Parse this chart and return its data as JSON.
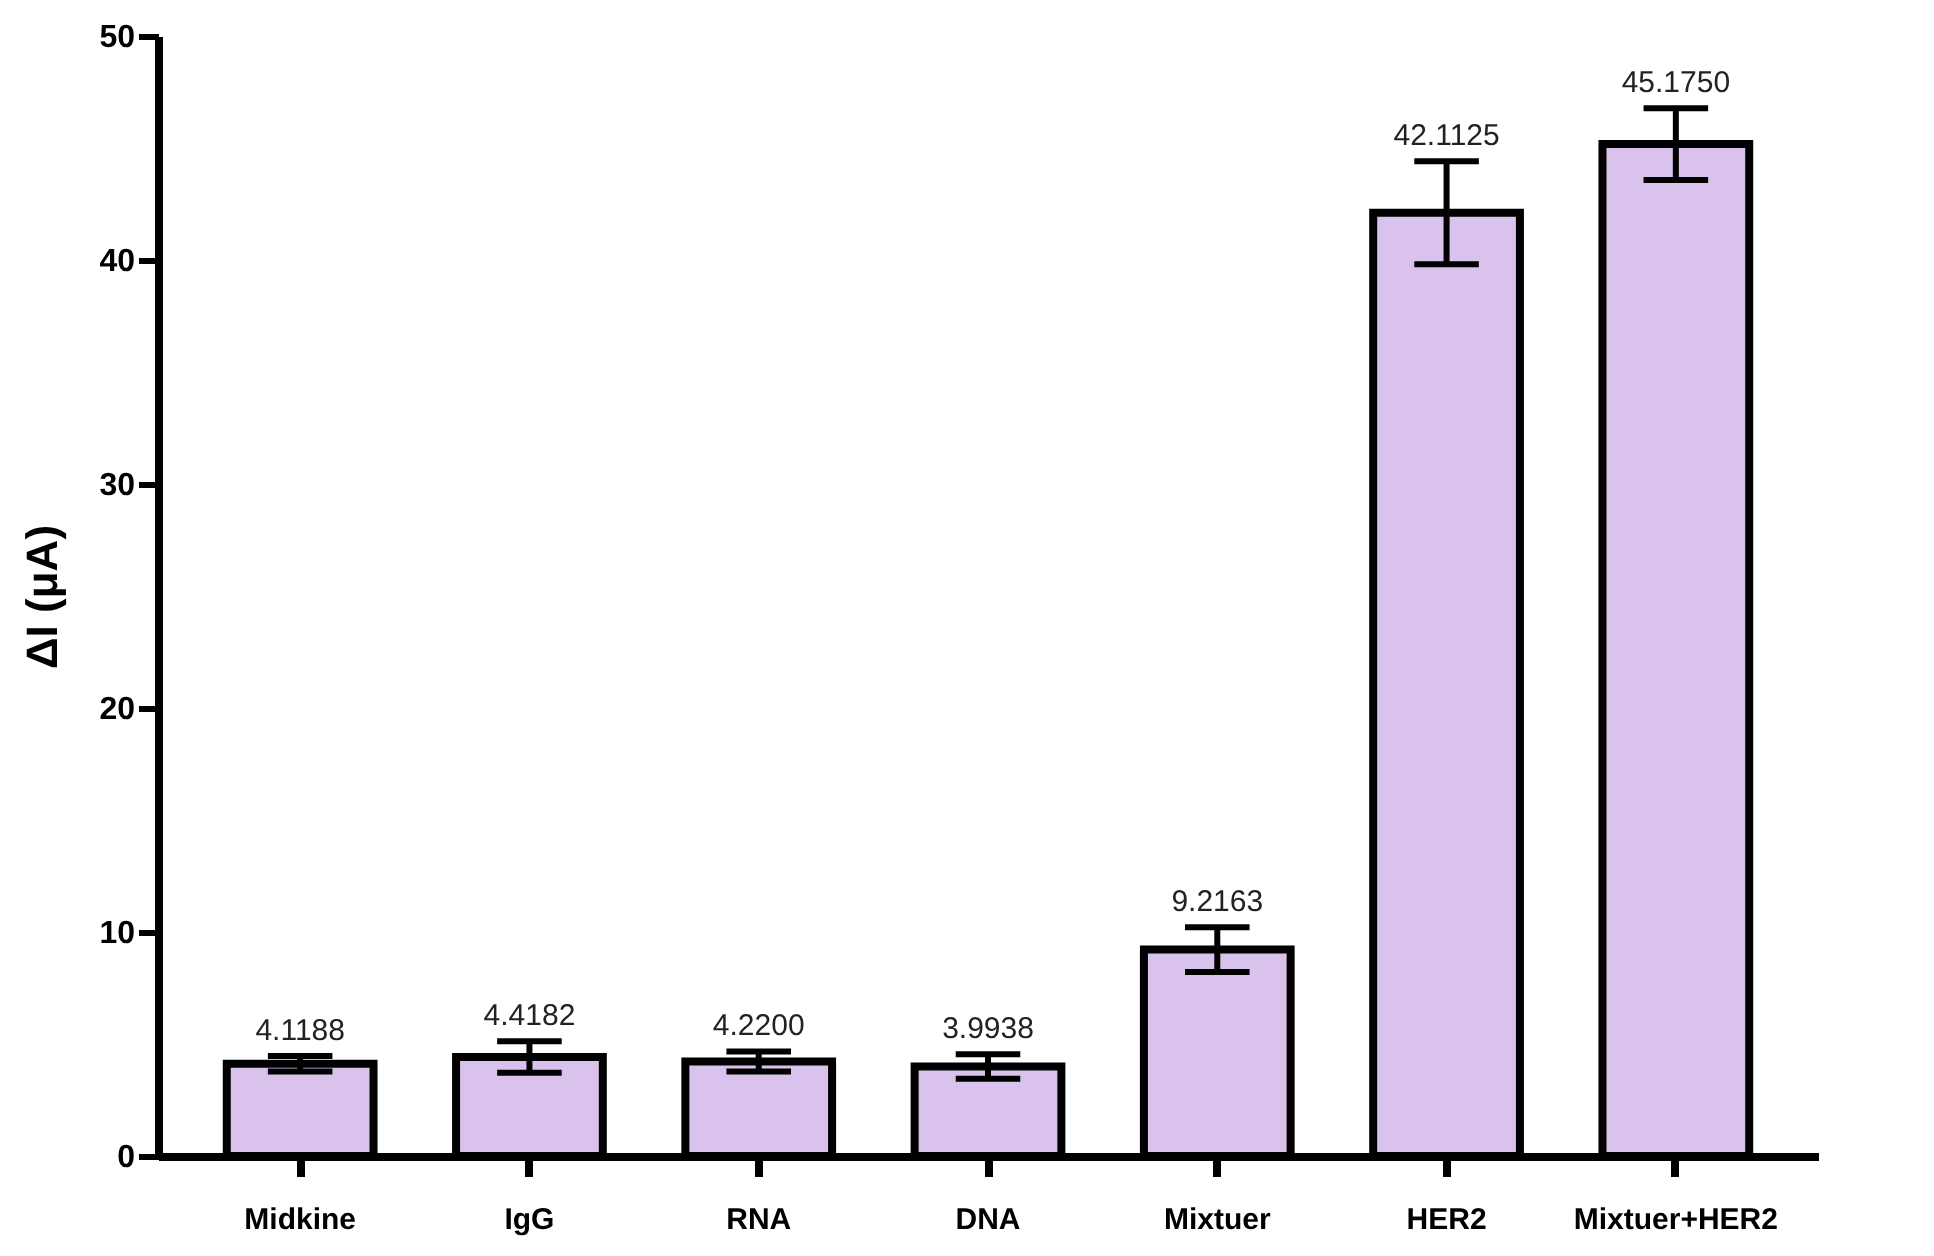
{
  "chart_data": {
    "type": "bar",
    "ylabel": "ΔI (μA)",
    "categories": [
      "Midkine",
      "IgG",
      "RNA",
      "DNA",
      "Mixtuer",
      "HER2",
      "Mixtuer+HER2"
    ],
    "values": [
      4.1188,
      4.4182,
      4.22,
      3.9938,
      9.2163,
      42.1125,
      45.175
    ],
    "errors": [
      0.35,
      0.7,
      0.45,
      0.55,
      1.0,
      2.3,
      1.6
    ],
    "value_labels": [
      "4.1188",
      "4.4182",
      "4.2200",
      "3.9938",
      "9.2163",
      "42.1125",
      "45.1750"
    ],
    "color": "#d9c3ec",
    "ylim": [
      0,
      50
    ],
    "yticks": [
      0,
      10,
      20,
      30,
      40,
      50
    ],
    "grid": false
  }
}
